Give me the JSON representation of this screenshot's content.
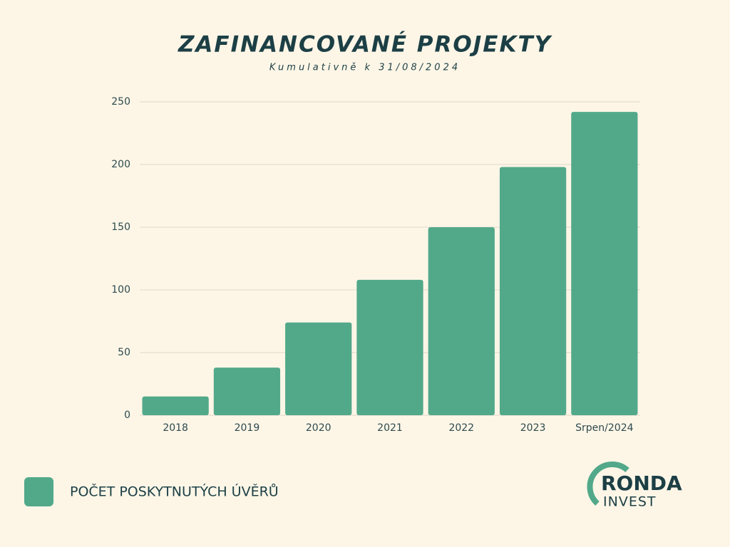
{
  "chart_data": {
    "type": "bar",
    "title": "ZAFINANCOVANÉ PROJEKTY",
    "subtitle": "Kumulativně k 31/08/2024",
    "categories": [
      "2018",
      "2019",
      "2020",
      "2021",
      "2022",
      "2023",
      "Srpen/2024"
    ],
    "series": [
      {
        "name": "POČET POSKYTNUTÝCH ÚVĚRŮ",
        "color": "#52a98a",
        "values": [
          15,
          38,
          74,
          108,
          150,
          198,
          242
        ]
      }
    ],
    "ylim": [
      0,
      250
    ],
    "yticks": [
      0,
      50,
      100,
      150,
      200,
      250
    ],
    "grid": true,
    "legend": "bottom-left"
  },
  "logo": {
    "name": "RONDA",
    "sub": "INVEST"
  }
}
